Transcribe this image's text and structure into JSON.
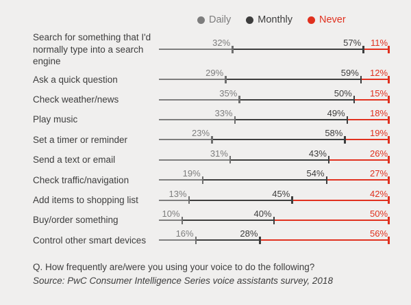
{
  "legend": {
    "items": [
      {
        "label": "Daily",
        "color": "#7d7d7d"
      },
      {
        "label": "Monthly",
        "color": "#3d3d3d"
      },
      {
        "label": "Never",
        "color": "#e0301e"
      }
    ]
  },
  "footer": {
    "question": "Q. How frequently are/were you using your voice to do the following?",
    "source": "Source: PwC Consumer Intelligence Series voice assistants survey, 2018"
  },
  "chart_data": {
    "type": "stacked-line",
    "title": "",
    "unit": "%",
    "xlim": [
      0,
      100
    ],
    "legend_position": "top",
    "categories": [
      "Search for something that I'd normally type into a search engine",
      "Ask a quick question",
      "Check weather/news",
      "Play music",
      "Set a timer or reminder",
      "Send a text or email",
      "Check traffic/navigation",
      "Add items to shopping list",
      "Buy/order something",
      "Control other smart devices"
    ],
    "series": [
      {
        "name": "Daily",
        "color": "#7d7d7d",
        "tick_color": "#6e6e6e",
        "values": [
          32,
          29,
          35,
          33,
          23,
          31,
          19,
          13,
          10,
          16
        ]
      },
      {
        "name": "Monthly",
        "color": "#3d3d3d",
        "tick_color": "#3d3d3d",
        "values": [
          57,
          59,
          50,
          49,
          58,
          43,
          54,
          45,
          40,
          28
        ]
      },
      {
        "name": "Never",
        "color": "#e0301e",
        "tick_color": "#e0301e",
        "values": [
          11,
          12,
          15,
          18,
          19,
          26,
          27,
          42,
          50,
          56
        ]
      }
    ]
  }
}
